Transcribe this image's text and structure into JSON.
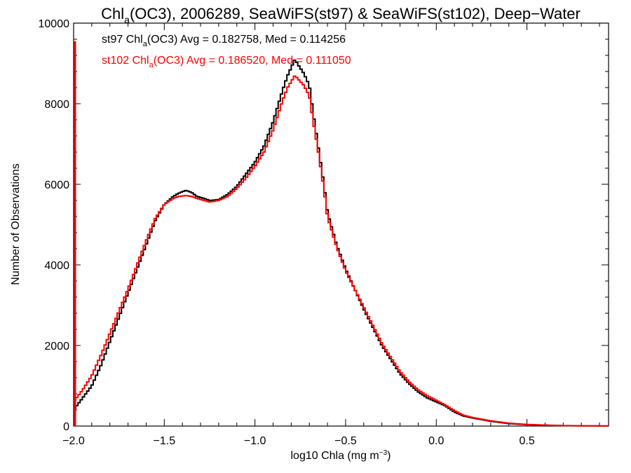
{
  "chart_data": {
    "type": "histogram",
    "title_parts": {
      "pre": "Chl",
      "sub": "a",
      "post": "(OC3), 2006289, SeaWiFS(st97) & SeaWiFS(st102), Deep−Water"
    },
    "xlabel_parts": {
      "pre": "log10 Chla (mg m",
      "sup": "−3",
      "post": ")"
    },
    "ylabel": "Number of Observations",
    "xlim": [
      -2.0,
      0.95
    ],
    "ylim": [
      0,
      10000
    ],
    "xticks": [
      -2.0,
      -1.5,
      -1.0,
      -0.5,
      0.0,
      0.5
    ],
    "xtick_labels": [
      "−2.0",
      "−1.5",
      "−1.0",
      "−0.5",
      "0.0",
      "0.5"
    ],
    "yticks": [
      0,
      2000,
      4000,
      6000,
      8000,
      10000
    ],
    "ytick_labels": [
      "0",
      "2000",
      "4000",
      "6000",
      "8000",
      "10000"
    ],
    "legend_placement": "top-left",
    "series": [
      {
        "name": "st97",
        "color": "#000000",
        "label_parts": {
          "pre": "st97 Chl",
          "sub": "a",
          "post": "(OC3) Avg = 0.182758, Med = 0.114256"
        },
        "spike": {
          "x": -2.0,
          "y": 0
        },
        "x": [
          -2.0,
          -1.95,
          -1.9,
          -1.85,
          -1.8,
          -1.75,
          -1.7,
          -1.65,
          -1.6,
          -1.55,
          -1.5,
          -1.45,
          -1.42,
          -1.38,
          -1.35,
          -1.32,
          -1.28,
          -1.25,
          -1.2,
          -1.15,
          -1.1,
          -1.05,
          -1.0,
          -0.95,
          -0.9,
          -0.85,
          -0.82,
          -0.78,
          -0.76,
          -0.73,
          -0.7,
          -0.68,
          -0.65,
          -0.62,
          -0.6,
          -0.55,
          -0.5,
          -0.45,
          -0.4,
          -0.35,
          -0.3,
          -0.25,
          -0.2,
          -0.15,
          -0.1,
          -0.05,
          0.0,
          0.05,
          0.1,
          0.15,
          0.2,
          0.3,
          0.4,
          0.5,
          0.6,
          0.7,
          0.8,
          0.95
        ],
        "y": [
          400,
          700,
          1000,
          1500,
          2100,
          2700,
          3300,
          3900,
          4500,
          5100,
          5500,
          5700,
          5780,
          5850,
          5800,
          5700,
          5650,
          5600,
          5620,
          5750,
          5950,
          6250,
          6550,
          6950,
          7550,
          8300,
          8700,
          9100,
          8950,
          8750,
          8450,
          7800,
          6900,
          6000,
          5300,
          4500,
          3900,
          3400,
          2900,
          2450,
          2000,
          1650,
          1300,
          1050,
          850,
          700,
          600,
          500,
          350,
          250,
          200,
          120,
          60,
          35,
          20,
          10,
          5,
          2
        ]
      },
      {
        "name": "st102",
        "color": "#ff0000",
        "label_parts": {
          "pre": "st102 Chl",
          "sub": "a",
          "post": "(OC3) Avg = 0.186520, Med = 0.111050"
        },
        "spike": {
          "x": -2.0,
          "y": 9550
        },
        "x": [
          -2.0,
          -1.95,
          -1.9,
          -1.85,
          -1.8,
          -1.75,
          -1.7,
          -1.65,
          -1.6,
          -1.55,
          -1.5,
          -1.45,
          -1.42,
          -1.38,
          -1.35,
          -1.32,
          -1.28,
          -1.25,
          -1.2,
          -1.15,
          -1.1,
          -1.05,
          -1.0,
          -0.95,
          -0.9,
          -0.85,
          -0.82,
          -0.78,
          -0.76,
          -0.73,
          -0.7,
          -0.68,
          -0.65,
          -0.62,
          -0.6,
          -0.55,
          -0.5,
          -0.45,
          -0.4,
          -0.35,
          -0.3,
          -0.25,
          -0.2,
          -0.15,
          -0.1,
          -0.05,
          0.0,
          0.05,
          0.1,
          0.15,
          0.2,
          0.3,
          0.4,
          0.5,
          0.6,
          0.7,
          0.8,
          0.95
        ],
        "y": [
          600,
          900,
          1250,
          1750,
          2300,
          2850,
          3400,
          4000,
          4600,
          5150,
          5500,
          5650,
          5700,
          5720,
          5700,
          5650,
          5600,
          5560,
          5600,
          5700,
          5900,
          6150,
          6450,
          6800,
          7350,
          8050,
          8400,
          8700,
          8600,
          8450,
          8200,
          7600,
          6800,
          5900,
          5200,
          4450,
          3850,
          3400,
          2950,
          2500,
          2050,
          1700,
          1350,
          1100,
          900,
          750,
          640,
          520,
          380,
          270,
          210,
          130,
          70,
          40,
          25,
          12,
          6,
          3
        ]
      }
    ]
  }
}
